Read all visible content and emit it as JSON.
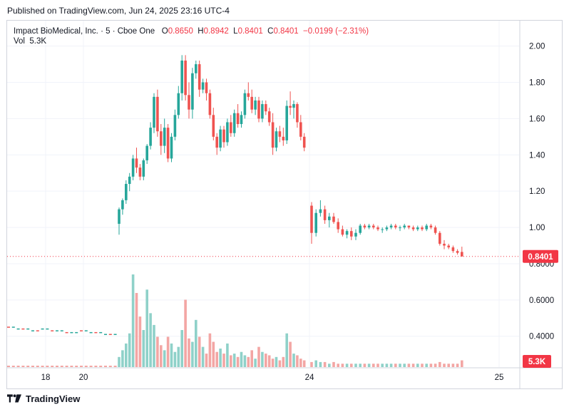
{
  "published": "Published on TradingView.com, Jun 24, 2025 23:16 UTC-4",
  "legend": {
    "symbol": "Impact BioMedical, Inc. · 5 · Cboe One",
    "o_label": "O",
    "o": "0.8650",
    "h_label": "H",
    "h": "0.8942",
    "l_label": "L",
    "l": "0.8401",
    "c_label": "C",
    "c": "0.8401",
    "change": "−0.0199 (−2.31%)",
    "vol_label": "Vol",
    "vol": "5.3K"
  },
  "footer": {
    "brand": "TradingView",
    "logo_icon": "tradingview-logo-icon"
  },
  "colors": {
    "up": "#26a69a",
    "down": "#ef5350",
    "vol_up": "#8fd1c9",
    "vol_down": "#f3a6a4",
    "last": "#f23645"
  },
  "chart_data": {
    "type": "candlestick",
    "title": "Impact BioMedical, Inc. · 5 · Cboe One",
    "interval": "5",
    "y_ticks": [
      "2.00",
      "1.80",
      "1.60",
      "1.40",
      "1.20",
      "1.00",
      "0.8000",
      "0.6000",
      "0.4000"
    ],
    "ylim": [
      0.23,
      2.14
    ],
    "x_ticks": [
      "18",
      "20",
      "24",
      "25"
    ],
    "last_price_label": "0.8401",
    "last_volume_label": "5.3K",
    "grid": true,
    "ohlc": [
      [
        1.02,
        1.11,
        0.96,
        1.1
      ],
      [
        1.1,
        1.16,
        1.07,
        1.15
      ],
      [
        1.15,
        1.26,
        1.13,
        1.24
      ],
      [
        1.24,
        1.3,
        1.2,
        1.28
      ],
      [
        1.28,
        1.4,
        1.26,
        1.38
      ],
      [
        1.38,
        1.44,
        1.3,
        1.33
      ],
      [
        1.33,
        1.35,
        1.26,
        1.28
      ],
      [
        1.28,
        1.38,
        1.26,
        1.37
      ],
      [
        1.37,
        1.46,
        1.35,
        1.45
      ],
      [
        1.45,
        1.58,
        1.43,
        1.55
      ],
      [
        1.55,
        1.74,
        1.52,
        1.72
      ],
      [
        1.72,
        1.76,
        1.5,
        1.53
      ],
      [
        1.53,
        1.57,
        1.4,
        1.45
      ],
      [
        1.45,
        1.6,
        1.41,
        1.55
      ],
      [
        1.55,
        1.57,
        1.36,
        1.38
      ],
      [
        1.38,
        1.52,
        1.36,
        1.5
      ],
      [
        1.5,
        1.65,
        1.48,
        1.62
      ],
      [
        1.62,
        1.78,
        1.6,
        1.74
      ],
      [
        1.74,
        1.95,
        1.7,
        1.92
      ],
      [
        1.92,
        1.95,
        1.7,
        1.73
      ],
      [
        1.73,
        1.8,
        1.6,
        1.65
      ],
      [
        1.65,
        1.88,
        1.6,
        1.85
      ],
      [
        1.85,
        1.92,
        1.82,
        1.9
      ],
      [
        1.9,
        1.92,
        1.72,
        1.76
      ],
      [
        1.76,
        1.82,
        1.74,
        1.8
      ],
      [
        1.8,
        1.82,
        1.7,
        1.74
      ],
      [
        1.74,
        1.76,
        1.6,
        1.62
      ],
      [
        1.62,
        1.66,
        1.48,
        1.5
      ],
      [
        1.5,
        1.52,
        1.4,
        1.44
      ],
      [
        1.44,
        1.56,
        1.42,
        1.54
      ],
      [
        1.54,
        1.56,
        1.44,
        1.47
      ],
      [
        1.47,
        1.6,
        1.45,
        1.58
      ],
      [
        1.58,
        1.62,
        1.5,
        1.52
      ],
      [
        1.52,
        1.65,
        1.5,
        1.63
      ],
      [
        1.63,
        1.68,
        1.55,
        1.57
      ],
      [
        1.57,
        1.64,
        1.55,
        1.62
      ],
      [
        1.62,
        1.76,
        1.6,
        1.74
      ],
      [
        1.74,
        1.8,
        1.7,
        1.72
      ],
      [
        1.72,
        1.76,
        1.63,
        1.65
      ],
      [
        1.65,
        1.72,
        1.62,
        1.7
      ],
      [
        1.7,
        1.72,
        1.58,
        1.6
      ],
      [
        1.6,
        1.7,
        1.58,
        1.68
      ],
      [
        1.68,
        1.7,
        1.62,
        1.64
      ],
      [
        1.64,
        1.66,
        1.56,
        1.58
      ],
      [
        1.58,
        1.63,
        1.4,
        1.44
      ],
      [
        1.44,
        1.55,
        1.42,
        1.53
      ],
      [
        1.53,
        1.56,
        1.47,
        1.5
      ],
      [
        1.5,
        1.55,
        1.45,
        1.48
      ],
      [
        1.48,
        1.7,
        1.46,
        1.67
      ],
      [
        1.67,
        1.75,
        1.62,
        1.66
      ],
      [
        1.66,
        1.7,
        1.6,
        1.68
      ],
      [
        1.68,
        1.69,
        1.55,
        1.58
      ],
      [
        1.58,
        1.62,
        1.48,
        1.5
      ],
      [
        1.5,
        1.52,
        1.42,
        1.44
      ],
      [
        1.12,
        1.14,
        0.91,
        0.97
      ],
      [
        0.97,
        1.1,
        0.95,
        1.08
      ],
      [
        1.08,
        1.15,
        1.06,
        1.1
      ],
      [
        1.1,
        1.12,
        1.02,
        1.04
      ],
      [
        1.04,
        1.08,
        1.0,
        1.06
      ],
      [
        1.06,
        1.08,
        1.02,
        1.03
      ],
      [
        1.03,
        1.05,
        0.97,
        0.99
      ],
      [
        0.99,
        1.01,
        0.95,
        0.96
      ],
      [
        0.96,
        0.99,
        0.94,
        0.98
      ],
      [
        0.98,
        1.0,
        0.93,
        0.95
      ],
      [
        0.95,
        0.99,
        0.93,
        0.97
      ],
      [
        0.97,
        1.02,
        0.96,
        1.01
      ],
      [
        1.01,
        1.02,
        0.99,
        1.0
      ],
      [
        1.0,
        1.02,
        0.99,
        1.01
      ],
      [
        1.01,
        1.02,
        0.99,
        1.0
      ],
      [
        1.0,
        1.01,
        0.98,
        0.99
      ],
      [
        0.99,
        1.0,
        0.97,
        0.99
      ],
      [
        0.99,
        1.01,
        0.98,
        1.0
      ],
      [
        1.0,
        1.02,
        0.99,
        1.01
      ],
      [
        1.01,
        1.02,
        0.99,
        1.0
      ],
      [
        1.0,
        1.01,
        0.98,
        1.0
      ],
      [
        1.0,
        1.02,
        0.99,
        1.01
      ],
      [
        1.01,
        1.01,
        0.99,
        1.0
      ],
      [
        1.0,
        1.01,
        0.98,
        0.99
      ],
      [
        0.99,
        1.01,
        0.98,
        1.0
      ],
      [
        1.0,
        1.01,
        0.98,
        0.99
      ],
      [
        0.99,
        1.02,
        0.98,
        1.01
      ],
      [
        1.01,
        1.02,
        0.99,
        1.0
      ],
      [
        1.0,
        1.01,
        0.96,
        0.97
      ],
      [
        0.97,
        0.98,
        0.9,
        0.91
      ],
      [
        0.91,
        0.93,
        0.88,
        0.9
      ],
      [
        0.9,
        0.91,
        0.88,
        0.89
      ],
      [
        0.89,
        0.9,
        0.86,
        0.87
      ],
      [
        0.87,
        0.88,
        0.85,
        0.86
      ],
      [
        0.865,
        0.894,
        0.84,
        0.84
      ]
    ],
    "premarket_closes": [
      0.45,
      0.45,
      0.44,
      0.44,
      0.44,
      0.43,
      0.43,
      0.44,
      0.44,
      0.43,
      0.43,
      0.43,
      0.42,
      0.42,
      0.42,
      0.43,
      0.43,
      0.42,
      0.42,
      0.42,
      0.41,
      0.41,
      0.41
    ],
    "volume_fraction": [
      0.06,
      0.1,
      0.14,
      0.2,
      0.55,
      0.44,
      0.3,
      0.22,
      0.46,
      0.32,
      0.25,
      0.18,
      0.13,
      0.1,
      0.18,
      0.14,
      0.09,
      0.12,
      0.22,
      0.4,
      0.17,
      0.15,
      0.28,
      0.18,
      0.12,
      0.08,
      0.2,
      0.15,
      0.09,
      0.11,
      0.08,
      0.14,
      0.07,
      0.08,
      0.06,
      0.09,
      0.07,
      0.06,
      0.1,
      0.05,
      0.12,
      0.09,
      0.08,
      0.07,
      0.05,
      0.06,
      0.04,
      0.06,
      0.2,
      0.15,
      0.08,
      0.07,
      0.05,
      0.04,
      0.03,
      0.04,
      0.03,
      0.03,
      0.02,
      0.03,
      0.02,
      0.02,
      0.02,
      0.02,
      0.02,
      0.02,
      0.02,
      0.02,
      0.02,
      0.02,
      0.02,
      0.02,
      0.02,
      0.02,
      0.02,
      0.02,
      0.02,
      0.02,
      0.02,
      0.02,
      0.02,
      0.02,
      0.02,
      0.03,
      0.02,
      0.02,
      0.02,
      0.02,
      0.04
    ]
  }
}
